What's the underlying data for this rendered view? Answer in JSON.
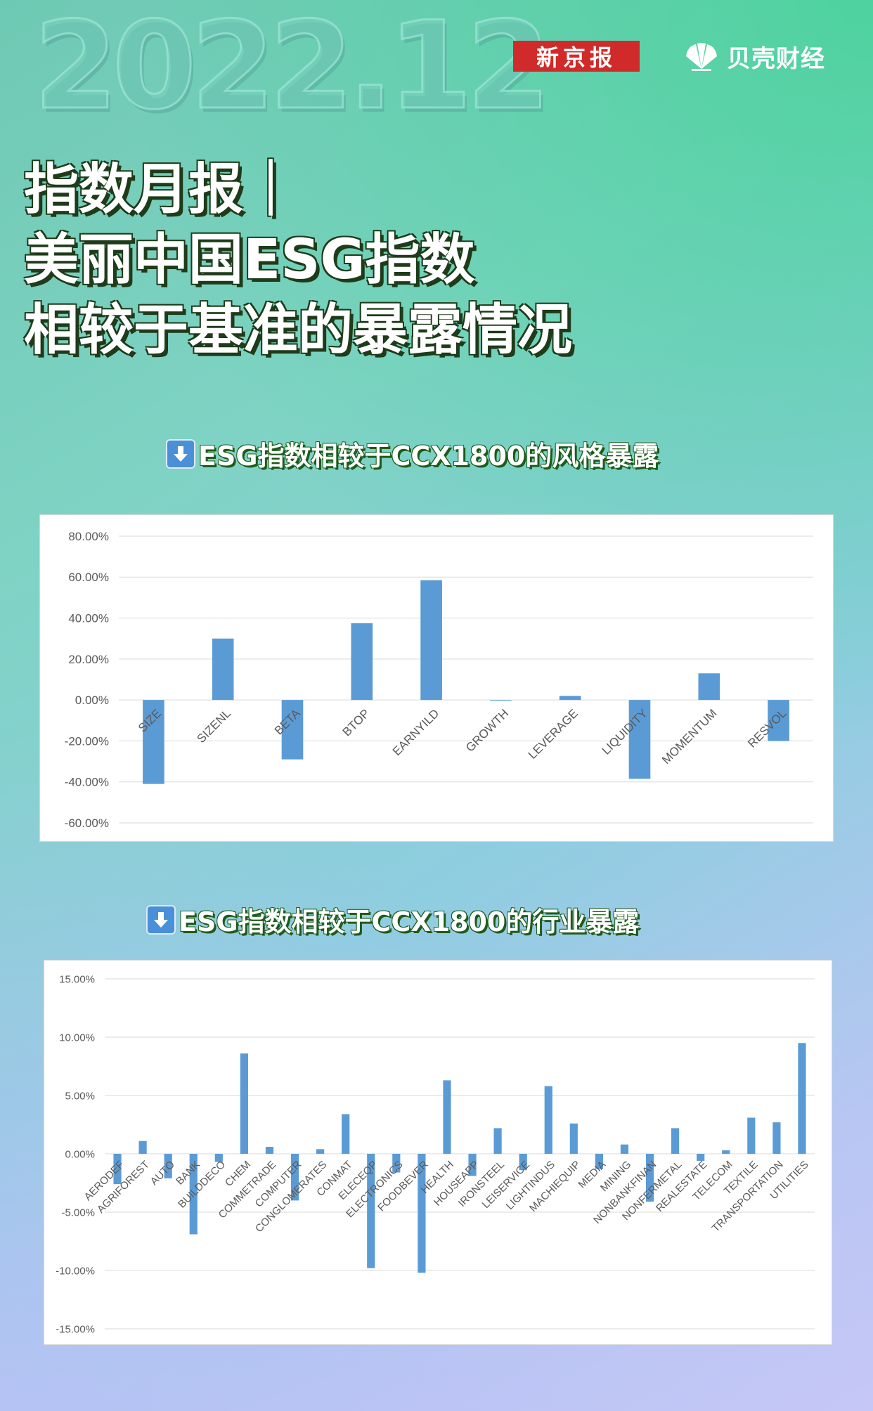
{
  "header": {
    "year": "2022.12",
    "logo_xjb": "新京报",
    "logo_bk": "贝壳财经"
  },
  "headline": {
    "line1": "指数月报｜",
    "line2": "美丽中国ESG指数",
    "line3": "相较于基准的暴露情况"
  },
  "section1": {
    "title": "ESG指数相较于CCX1800的风格暴露"
  },
  "section2": {
    "title": "ESG指数相较于CCX1800的行业暴露"
  },
  "colors": {
    "bar": "#5b9bd5",
    "grid": "#d9d9d9",
    "axis_text": "#595959"
  },
  "chart_data": [
    {
      "type": "bar",
      "title": "",
      "xlabel": "",
      "ylabel": "",
      "ylim": [
        -0.6,
        0.8
      ],
      "yticks": [
        0.8,
        0.6,
        0.4,
        0.2,
        0.0,
        -0.2,
        -0.4,
        -0.6
      ],
      "ytick_labels": [
        "80.00%",
        "60.00%",
        "40.00%",
        "20.00%",
        "0.00%",
        "-20.00%",
        "-40.00%",
        "-60.00%"
      ],
      "grid": true,
      "categories": [
        "SIZE",
        "SIZENL",
        "BETA",
        "BTOP",
        "EARNYILD",
        "GROWTH",
        "LEVERAGE",
        "LIQUIDITY",
        "MOMENTUM",
        "RESVOL"
      ],
      "values": [
        -0.41,
        0.3,
        -0.29,
        0.375,
        0.585,
        -0.003,
        0.02,
        -0.385,
        0.13,
        -0.2
      ]
    },
    {
      "type": "bar",
      "title": "",
      "xlabel": "",
      "ylabel": "",
      "ylim": [
        -0.15,
        0.15
      ],
      "yticks": [
        0.15,
        0.1,
        0.05,
        0.0,
        -0.05,
        -0.1,
        -0.15
      ],
      "ytick_labels": [
        "15.00%",
        "10.00%",
        "5.00%",
        "0.00%",
        "-5.00%",
        "-10.00%",
        "-15.00%"
      ],
      "grid": true,
      "categories": [
        "AERODEF",
        "AGRIFOREST",
        "AUTO",
        "BANK",
        "BUILDDECO",
        "CHEM",
        "COMMETRADE",
        "COMPUTER",
        "CONGLOMERATES",
        "CONMAT",
        "ELECEQP",
        "ELECTRONICS",
        "FOODBEVER",
        "HEALTH",
        "HOUSEAPP",
        "IRONSTEEL",
        "LEISERVICE",
        "LIGHTINDUS",
        "MACHIEQUIP",
        "MEDIA",
        "MINING",
        "NONBANKFINAN",
        "NONFERMETAL",
        "REALESTATE",
        "TELECOM",
        "TEXTILE",
        "TRANSPORTATION",
        "UTILITIES"
      ],
      "values": [
        -0.026,
        0.011,
        -0.021,
        -0.069,
        -0.007,
        0.086,
        0.006,
        -0.04,
        0.004,
        0.034,
        -0.098,
        -0.016,
        -0.102,
        0.063,
        -0.019,
        0.022,
        -0.014,
        0.058,
        0.026,
        -0.013,
        0.008,
        -0.041,
        0.022,
        -0.006,
        0.003,
        0.031,
        0.027,
        0.095
      ]
    }
  ]
}
